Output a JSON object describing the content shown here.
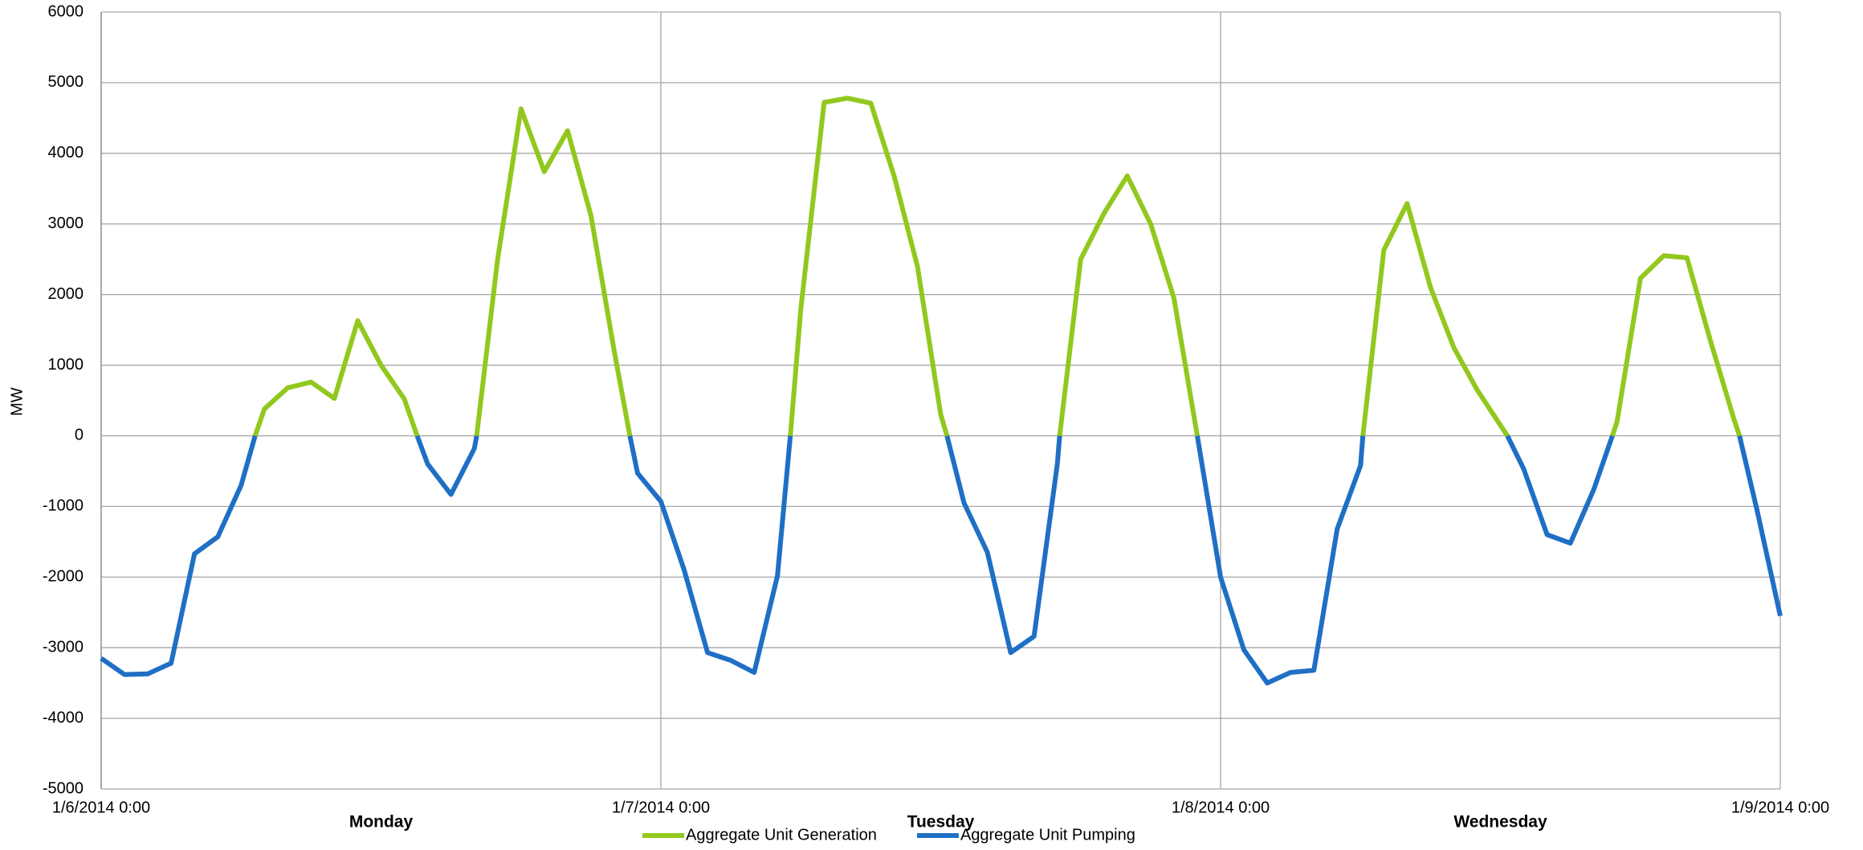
{
  "chart_data": {
    "type": "line",
    "y_label": "MW",
    "xlim": [
      0,
      72
    ],
    "xticks": [
      {
        "value": 0,
        "label": "1/6/2014 0:00"
      },
      {
        "value": 24,
        "label": "1/7/2014 0:00"
      },
      {
        "value": 48,
        "label": "1/8/2014 0:00"
      },
      {
        "value": 72,
        "label": "1/9/2014 0:00"
      }
    ],
    "ylim": [
      -5000,
      6000
    ],
    "yticks": [
      -5000,
      -4000,
      -3000,
      -2000,
      -1000,
      0,
      1000,
      2000,
      3000,
      4000,
      5000,
      6000
    ],
    "grid": true,
    "annotations": [
      "Monday",
      "Tuesday",
      "Wednesday"
    ],
    "legend": "bottom",
    "series": [
      {
        "name": "Aggregate Unit Generation",
        "color": "#92c81e",
        "x": [
          6.6,
          7,
          8,
          9,
          10,
          11,
          12,
          13,
          13.55,
          15,
          16.1,
          17,
          18,
          19,
          20,
          21,
          22,
          22.67,
          26,
          29.55,
          30,
          31,
          32,
          33,
          34,
          35,
          36,
          36.27,
          39,
          41.1,
          42,
          43,
          44,
          45,
          46,
          47,
          51,
          54.1,
          55,
          56,
          57,
          58,
          59,
          60,
          60.3,
          62,
          64.8,
          65,
          66,
          67,
          68,
          69,
          70,
          70.25
        ],
        "values": [
          0,
          380,
          680,
          760,
          530,
          1630,
          1000,
          520,
          0,
          null,
          0,
          2500,
          4630,
          3740,
          4320,
          3120,
          1200,
          0,
          null,
          0,
          1800,
          4720,
          4780,
          4710,
          3680,
          2400,
          300,
          0,
          null,
          0,
          2500,
          3150,
          3680,
          3000,
          1950,
          0,
          null,
          0,
          2630,
          3290,
          2100,
          1250,
          650,
          150,
          0,
          null,
          0,
          200,
          2230,
          2550,
          2520,
          1350,
          250,
          0
        ]
      },
      {
        "name": "Aggregate Unit Pumping",
        "color": "#1f6fc5",
        "x": [
          0,
          1,
          2,
          3,
          4,
          5,
          6,
          6.6,
          10,
          13.55,
          14,
          15,
          16,
          16.1,
          19,
          22.67,
          23,
          24,
          25,
          26,
          27,
          28,
          29,
          29.55,
          33,
          36.27,
          37,
          38,
          39,
          40,
          41,
          41.1,
          44,
          47,
          48,
          49,
          50,
          51,
          52,
          53,
          54,
          54.1,
          57,
          60.3,
          61,
          62,
          63,
          64,
          64.8,
          67,
          70.25,
          71,
          72
        ],
        "values": [
          -3150,
          -3380,
          -3370,
          -3220,
          -1670,
          -1430,
          -700,
          0,
          null,
          0,
          -400,
          -830,
          -180,
          0,
          null,
          0,
          -530,
          -930,
          -1900,
          -3070,
          -3180,
          -3350,
          -1980,
          0,
          null,
          0,
          -950,
          -1650,
          -3070,
          -2840,
          -400,
          0,
          null,
          0,
          -2000,
          -3030,
          -3500,
          -3350,
          -3320,
          -1320,
          -420,
          0,
          null,
          0,
          -470,
          -1400,
          -1520,
          -760,
          0,
          null,
          0,
          -1050,
          -2550
        ]
      }
    ]
  }
}
